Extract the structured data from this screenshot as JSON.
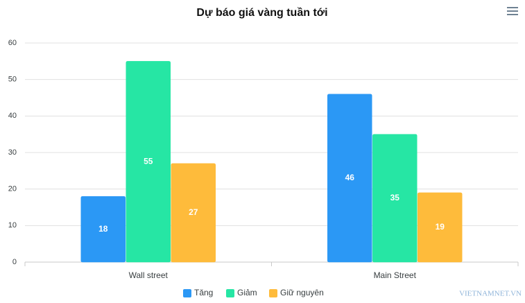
{
  "chart_data": {
    "type": "bar",
    "title": "Dự báo giá vàng tuần tới",
    "categories": [
      "Wall street",
      "Main Street"
    ],
    "series": [
      {
        "name": "Tăng",
        "color": "#2b98f5",
        "values": [
          18,
          46
        ]
      },
      {
        "name": "Giảm",
        "color": "#26e6a4",
        "values": [
          55,
          35
        ]
      },
      {
        "name": "Giữ nguyên",
        "color": "#febb3b",
        "values": [
          27,
          19
        ]
      }
    ],
    "ylim": [
      0,
      60
    ],
    "yticks": [
      0,
      10,
      20,
      30,
      40,
      50,
      60
    ],
    "grid": true,
    "legend": "bottom",
    "watermark": "VIETNAMNET.VN"
  }
}
